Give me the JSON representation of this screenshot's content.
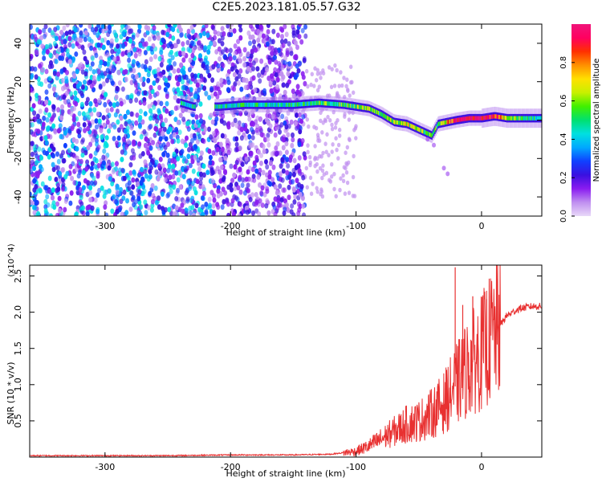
{
  "title": "C2E5.2023.181.05.57.G32",
  "chart_data": [
    {
      "type": "heatmap",
      "xlabel": "Height of straight line (km)",
      "ylabel": "Frequency (Hz)",
      "xlim": [
        -360,
        48
      ],
      "ylim": [
        -50,
        50
      ],
      "xticks": [
        -300,
        -200,
        -100,
        0
      ],
      "xtick_labels": [
        "-300",
        "-200",
        "-100",
        "0"
      ],
      "yticks": [
        -40,
        -20,
        0,
        20,
        40
      ],
      "ytick_labels": [
        "-40",
        "-20",
        "0",
        "20",
        "40"
      ],
      "colorbar": {
        "label": "Normalized spectral amplitude",
        "range": [
          0,
          1
        ],
        "ticks": [
          0.0,
          0.2,
          0.4,
          0.6,
          0.8
        ],
        "tick_labels": [
          "0.0",
          "0.2",
          "0.4",
          "0.6",
          "0.8"
        ],
        "colormap": [
          "#e8d8f8",
          "#c090f0",
          "#8a1cf0",
          "#3a10e0",
          "#1040ff",
          "#00a8ff",
          "#00e0e0",
          "#00e070",
          "#40f000",
          "#c8f000",
          "#ffe000",
          "#ff9000",
          "#ff3000",
          "#ff0060",
          "#f0147a"
        ]
      },
      "noise_region": {
        "x": [
          -360,
          -140
        ],
        "amplitude": [
          0.05,
          0.45
        ]
      },
      "main_trace": [
        {
          "x": -240,
          "y": 9,
          "amp": 0.45
        },
        {
          "x": -230,
          "y": 7,
          "amp": 0.45
        },
        {
          "x": -210,
          "y": 7,
          "amp": 0.45
        },
        {
          "x": -190,
          "y": 8,
          "amp": 0.45
        },
        {
          "x": -170,
          "y": 8,
          "amp": 0.45
        },
        {
          "x": -150,
          "y": 8,
          "amp": 0.45
        },
        {
          "x": -130,
          "y": 9,
          "amp": 0.5
        },
        {
          "x": -110,
          "y": 8,
          "amp": 0.55
        },
        {
          "x": -90,
          "y": 6,
          "amp": 0.6
        },
        {
          "x": -80,
          "y": 3,
          "amp": 0.55
        },
        {
          "x": -70,
          "y": -1,
          "amp": 0.6
        },
        {
          "x": -60,
          "y": -2,
          "amp": 0.65
        },
        {
          "x": -50,
          "y": -5,
          "amp": 0.6
        },
        {
          "x": -40,
          "y": -8,
          "amp": 0.55
        },
        {
          "x": -35,
          "y": -2,
          "amp": 0.55
        },
        {
          "x": -20,
          "y": 0,
          "amp": 0.95
        },
        {
          "x": -10,
          "y": 1,
          "amp": 0.95
        },
        {
          "x": 0,
          "y": 1,
          "amp": 0.95
        },
        {
          "x": 10,
          "y": 2,
          "amp": 0.9
        },
        {
          "x": 20,
          "y": 1,
          "amp": 0.6
        },
        {
          "x": 35,
          "y": 1,
          "amp": 0.5
        },
        {
          "x": 48,
          "y": 1,
          "amp": 0.45
        }
      ]
    },
    {
      "type": "line",
      "xlabel": "Height of straight line (km)",
      "ylabel": "SNR (10 * v/v)",
      "y_multiplier": "(x10^4)",
      "xlim": [
        -360,
        48
      ],
      "ylim": [
        0,
        2.65
      ],
      "xticks": [
        -300,
        -200,
        -100,
        0
      ],
      "xtick_labels": [
        "-300",
        "-200",
        "-100",
        "0"
      ],
      "yticks": [
        0.5,
        1.0,
        1.5,
        2.0,
        2.5
      ],
      "ytick_labels": [
        "0.5",
        "1.0",
        "1.5",
        "2.0",
        "2.5"
      ],
      "color": "#e83030",
      "series": [
        {
          "x": [
            -360,
            -300,
            -250,
            -200,
            -150,
            -120,
            -100,
            -90,
            -80,
            -70,
            -60,
            -50,
            -40,
            -30,
            -20,
            -10,
            0,
            10,
            20,
            30,
            40,
            48
          ],
          "y": [
            0.02,
            0.02,
            0.02,
            0.03,
            0.03,
            0.04,
            0.08,
            0.15,
            0.25,
            0.35,
            0.45,
            0.5,
            0.6,
            0.75,
            1.0,
            1.25,
            1.45,
            1.7,
            1.95,
            2.05,
            2.08,
            2.08
          ]
        }
      ],
      "notable_points": [
        {
          "x": -21,
          "y": 2.62
        },
        {
          "x": -15,
          "y": 2.1
        },
        {
          "x": -7,
          "y": 2.22
        },
        {
          "x": 4,
          "y": 2.18
        }
      ]
    }
  ]
}
